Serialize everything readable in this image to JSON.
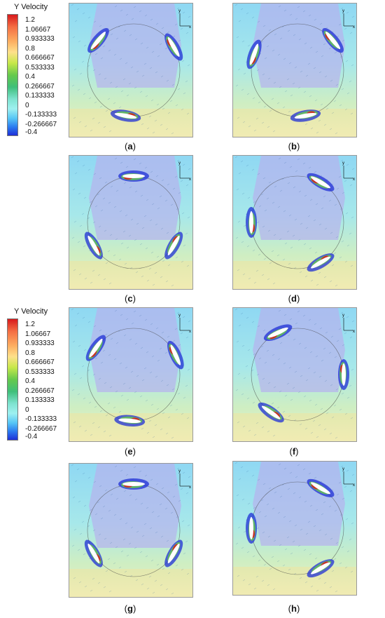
{
  "legends": [
    {
      "title": "Y Velocity",
      "ticks": [
        "1.2",
        "1.06667",
        "0.933333",
        "0.8",
        "0.666667",
        "0.533333",
        "0.4",
        "0.266667",
        "0.133333",
        "0",
        "-0.133333",
        "-0.266667",
        "-0.4"
      ]
    },
    {
      "title": "Y Velocity",
      "ticks": [
        "1.2",
        "1.06667",
        "0.933333",
        "0.8",
        "0.666667",
        "0.533333",
        "0.4",
        "0.266667",
        "0.133333",
        "0",
        "-0.133333",
        "-0.266667",
        "-0.4"
      ]
    }
  ],
  "panels": [
    {
      "letter": "a",
      "axis_y": "y",
      "axis_x": "x"
    },
    {
      "letter": "b",
      "axis_y": "y",
      "axis_x": "x"
    },
    {
      "letter": "c",
      "axis_y": "y",
      "axis_x": "x"
    },
    {
      "letter": "d",
      "axis_y": "y",
      "axis_x": "x"
    },
    {
      "letter": "e",
      "axis_y": "y",
      "axis_x": "x"
    },
    {
      "letter": "f",
      "axis_y": "y",
      "axis_x": "x"
    },
    {
      "letter": "g",
      "axis_y": "y",
      "axis_x": "x"
    },
    {
      "letter": "h",
      "axis_y": "y",
      "axis_x": "x"
    }
  ],
  "colors": {
    "red": "#d7191c",
    "yellow": "#fee08b",
    "green": "#66c94c",
    "cyan": "#7fe3d0",
    "blue": "#1f2fd6",
    "lavender": "#b7b2ee"
  }
}
